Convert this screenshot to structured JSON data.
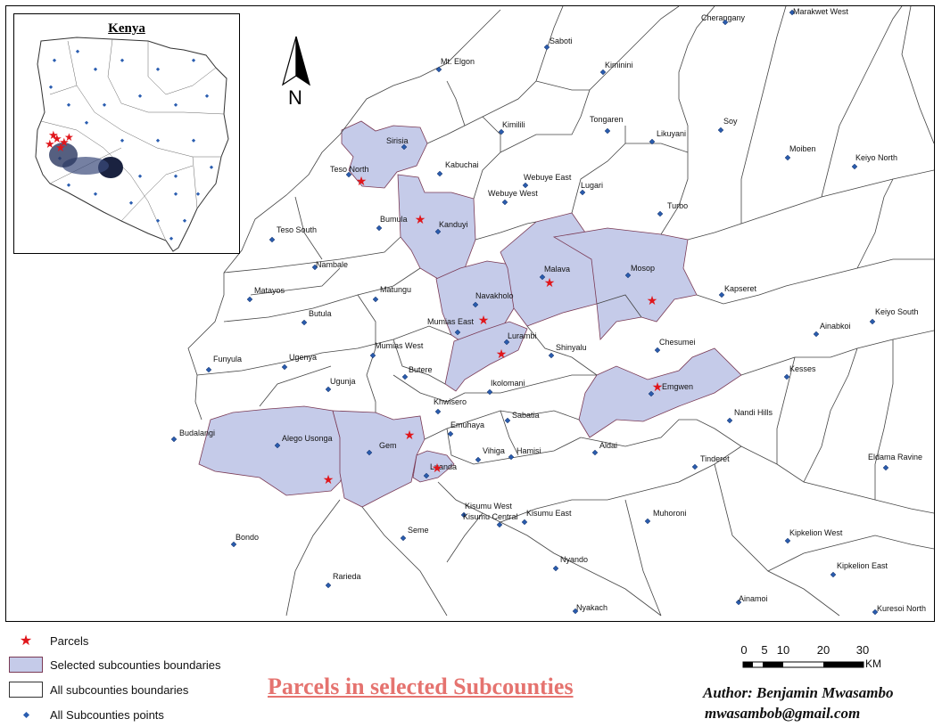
{
  "inset": {
    "title": "Kenya"
  },
  "north_arrow": {
    "label": "N"
  },
  "map": {
    "colors": {
      "selected_fill": "#c5cbe9",
      "boundary": "#444444",
      "selected_stroke": "#7a3a55",
      "point": "#2a5db0",
      "parcel": "#e0161b"
    },
    "places": [
      "Cherangany",
      "Marakwet West",
      "Saboti",
      "Kiminini",
      "Mt. Elgon",
      "Kimilili",
      "Tongaren",
      "Soy",
      "Likuyani",
      "Moiben",
      "Keiyo North",
      "Sirisia",
      "Kabuchai",
      "Teso North",
      "Webuye East",
      "Lugari",
      "Webuye West",
      "Turbo",
      "Bumula",
      "Kanduyi",
      "Teso South",
      "Nambale",
      "Malava",
      "Mosop",
      "Kapseret",
      "Matayos",
      "Matungu",
      "Navakholo",
      "Keiyo South",
      "Butula",
      "Mumias East",
      "Ainabkoi",
      "Lurambi",
      "Mumias West",
      "Chesumei",
      "Shinyalu",
      "Funyula",
      "Ugenya",
      "Butere",
      "Kesses",
      "Ugunja",
      "Ikolomani",
      "Emgwen",
      "Khwisero",
      "Nandi Hills",
      "Sabatia",
      "Budalangi",
      "Emuhaya",
      "Alego Usonga",
      "Gem",
      "Aldai",
      "Hamisi",
      "Vihiga",
      "Tinderet",
      "Eldama Ravine",
      "Luanda",
      "Kisumu West",
      "Kisumu Central",
      "Kisumu East",
      "Muhoroni",
      "Seme",
      "Bondo",
      "Kipkelion West",
      "Nyando",
      "Kipkelion East",
      "Rarieda",
      "Ainamoi",
      "Nyakach",
      "Kuresoi North"
    ]
  },
  "legend": {
    "parcels": "Parcels",
    "selected": "Selected subcounties boundaries",
    "all_boundaries": "All subcounties boundaries",
    "all_points": "All Subcounties points"
  },
  "scale": {
    "ticks": [
      "0",
      "5",
      "10",
      "20",
      "30"
    ],
    "unit": "KM"
  },
  "title": "Parcels in selected Subcounties",
  "author": "Author: Benjamin Mwasambo",
  "email": "mwasambob@gmail.com"
}
